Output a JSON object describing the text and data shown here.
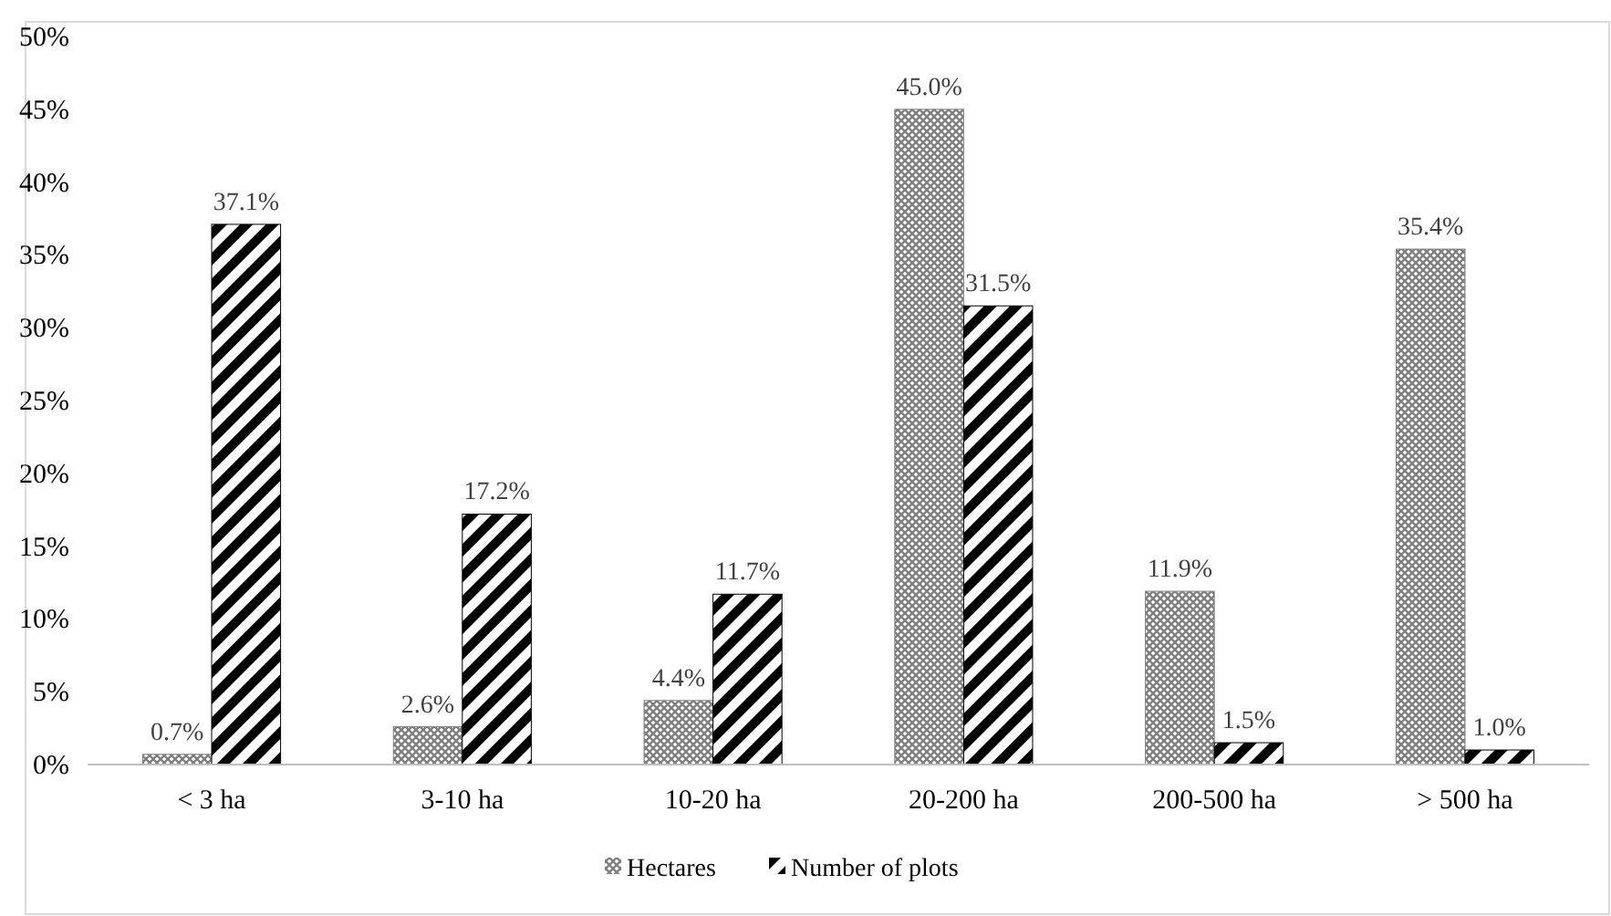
{
  "chart_data": {
    "type": "bar",
    "categories": [
      "< 3 ha",
      "3-10 ha",
      "10-20 ha",
      "20-200 ha",
      "200-500 ha",
      "> 500 ha"
    ],
    "series": [
      {
        "name": "Hectares",
        "color": "#7f7f7f",
        "values": [
          0.7,
          2.6,
          4.4,
          45.0,
          11.9,
          35.4
        ],
        "value_labels": [
          "0.7%",
          "2.6%",
          "4.4%",
          "45.0%",
          "11.9%",
          "35.4%"
        ]
      },
      {
        "name": "Number of plots",
        "color": "#000000",
        "values": [
          37.1,
          17.2,
          11.7,
          31.5,
          1.5,
          1.0
        ],
        "value_labels": [
          "37.1%",
          "17.2%",
          "11.7%",
          "31.5%",
          "1.5%",
          "1.0%"
        ]
      }
    ],
    "ylim": [
      0,
      50
    ],
    "yticks": [
      {
        "value": 0,
        "label": "0%"
      },
      {
        "value": 5,
        "label": "5%"
      },
      {
        "value": 10,
        "label": "10%"
      },
      {
        "value": 15,
        "label": "15%"
      },
      {
        "value": 20,
        "label": "20%"
      },
      {
        "value": 25,
        "label": "25%"
      },
      {
        "value": 30,
        "label": "30%"
      },
      {
        "value": 35,
        "label": "35%"
      },
      {
        "value": 40,
        "label": "40%"
      },
      {
        "value": 45,
        "label": "45%"
      },
      {
        "value": 50,
        "label": "50%"
      }
    ],
    "legend": "bottom"
  }
}
